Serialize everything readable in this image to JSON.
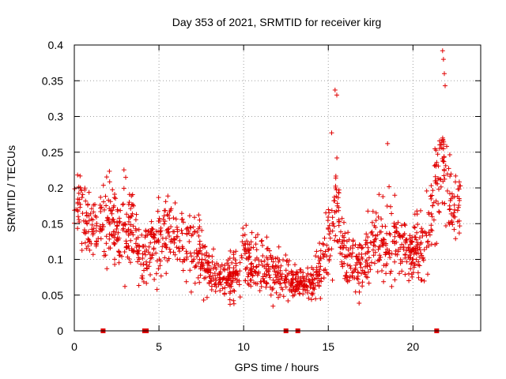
{
  "chart_data": {
    "type": "scatter",
    "title": "Day 353 of 2021, SRMTID for receiver kirg",
    "xlabel": "GPS time / hours",
    "ylabel": "SRMTID / TECUs",
    "xlim": [
      0,
      24
    ],
    "ylim": [
      0,
      0.4
    ],
    "grid": true,
    "marker": "plus",
    "series_color": "#e00000",
    "x_ticks": [
      0,
      5,
      10,
      15,
      20
    ],
    "x_tick_labels": [
      "0",
      "5",
      "10",
      "15",
      "20"
    ],
    "y_ticks": [
      0,
      0.05,
      0.1,
      0.15,
      0.2,
      0.25,
      0.3,
      0.35,
      0.4
    ],
    "y_tick_labels": [
      "0",
      "0.05",
      "0.1",
      "0.15",
      "0.2",
      "0.25",
      "0.3",
      "0.35",
      "0.4"
    ],
    "zero_markers_x": [
      1.7,
      4.15,
      4.25,
      12.5,
      13.2,
      21.4
    ],
    "profile": [
      {
        "t": 0.0,
        "mean": 0.175,
        "spread": 0.05
      },
      {
        "t": 0.5,
        "mean": 0.16,
        "spread": 0.06
      },
      {
        "t": 1.0,
        "mean": 0.15,
        "spread": 0.05
      },
      {
        "t": 2.0,
        "mean": 0.145,
        "spread": 0.05
      },
      {
        "t": 3.0,
        "mean": 0.14,
        "spread": 0.06
      },
      {
        "t": 3.5,
        "mean": 0.135,
        "spread": 0.05
      },
      {
        "t": 4.0,
        "mean": 0.1,
        "spread": 0.03
      },
      {
        "t": 5.0,
        "mean": 0.13,
        "spread": 0.05
      },
      {
        "t": 6.0,
        "mean": 0.13,
        "spread": 0.05
      },
      {
        "t": 7.0,
        "mean": 0.12,
        "spread": 0.05
      },
      {
        "t": 8.0,
        "mean": 0.08,
        "spread": 0.03
      },
      {
        "t": 9.0,
        "mean": 0.07,
        "spread": 0.025
      },
      {
        "t": 10.0,
        "mean": 0.1,
        "spread": 0.04
      },
      {
        "t": 11.0,
        "mean": 0.1,
        "spread": 0.04
      },
      {
        "t": 12.0,
        "mean": 0.08,
        "spread": 0.03
      },
      {
        "t": 13.0,
        "mean": 0.07,
        "spread": 0.02
      },
      {
        "t": 14.0,
        "mean": 0.06,
        "spread": 0.02
      },
      {
        "t": 15.0,
        "mean": 0.12,
        "spread": 0.05
      },
      {
        "t": 15.5,
        "mean": 0.18,
        "spread": 0.06
      },
      {
        "t": 16.0,
        "mean": 0.1,
        "spread": 0.04
      },
      {
        "t": 17.0,
        "mean": 0.09,
        "spread": 0.04
      },
      {
        "t": 18.0,
        "mean": 0.13,
        "spread": 0.05
      },
      {
        "t": 19.0,
        "mean": 0.13,
        "spread": 0.05
      },
      {
        "t": 20.0,
        "mean": 0.1,
        "spread": 0.04
      },
      {
        "t": 21.0,
        "mean": 0.15,
        "spread": 0.05
      },
      {
        "t": 21.7,
        "mean": 0.25,
        "spread": 0.07
      },
      {
        "t": 22.0,
        "mean": 0.2,
        "spread": 0.06
      },
      {
        "t": 22.8,
        "mean": 0.17,
        "spread": 0.05
      }
    ],
    "peaks": [
      {
        "x": 15.4,
        "y": 0.337
      },
      {
        "x": 15.5,
        "y": 0.33
      },
      {
        "x": 21.75,
        "y": 0.392
      },
      {
        "x": 21.8,
        "y": 0.38
      },
      {
        "x": 21.85,
        "y": 0.36
      },
      {
        "x": 21.9,
        "y": 0.343
      },
      {
        "x": 15.2,
        "y": 0.277
      },
      {
        "x": 18.5,
        "y": 0.262
      }
    ]
  }
}
